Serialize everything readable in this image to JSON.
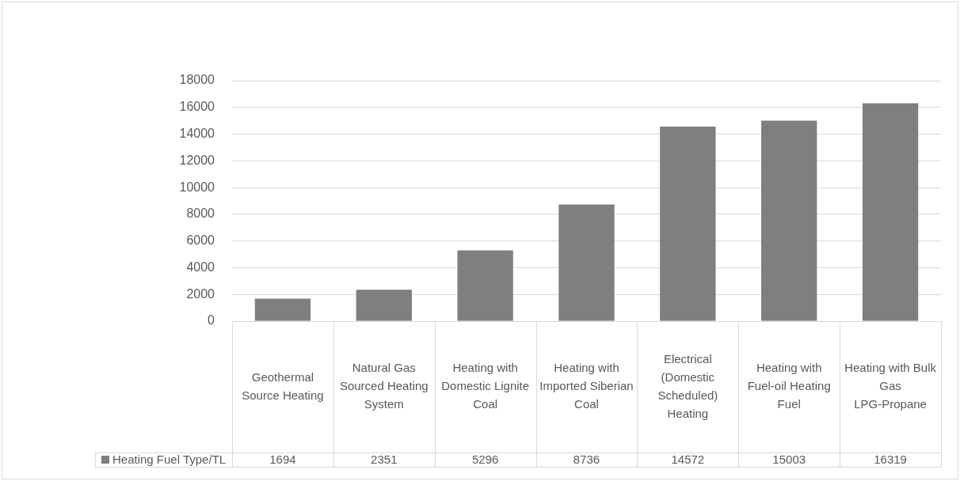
{
  "chart_data": {
    "type": "bar",
    "categories": [
      "Geothermal Source Heating",
      "Natural Gas Sourced Heating System",
      "Heating with Domestic Lignite Coal",
      "Heating with Imported Siberian Coal",
      "Electrical (Domestic Scheduled) Heating",
      "Heating with Fuel-oil Heating Fuel",
      "Heating with Bulk Gas LPG-Propane"
    ],
    "series": [
      {
        "name": "Heating Fuel Type/TL",
        "color": "#7f7f7f",
        "values": [
          1694,
          2351,
          5296,
          8736,
          14572,
          15003,
          16319
        ]
      }
    ],
    "ylim": [
      0,
      18000
    ],
    "yticks": [
      0,
      2000,
      4000,
      6000,
      8000,
      10000,
      12000,
      14000,
      16000,
      18000
    ],
    "grid": "y",
    "data_labels": true
  }
}
